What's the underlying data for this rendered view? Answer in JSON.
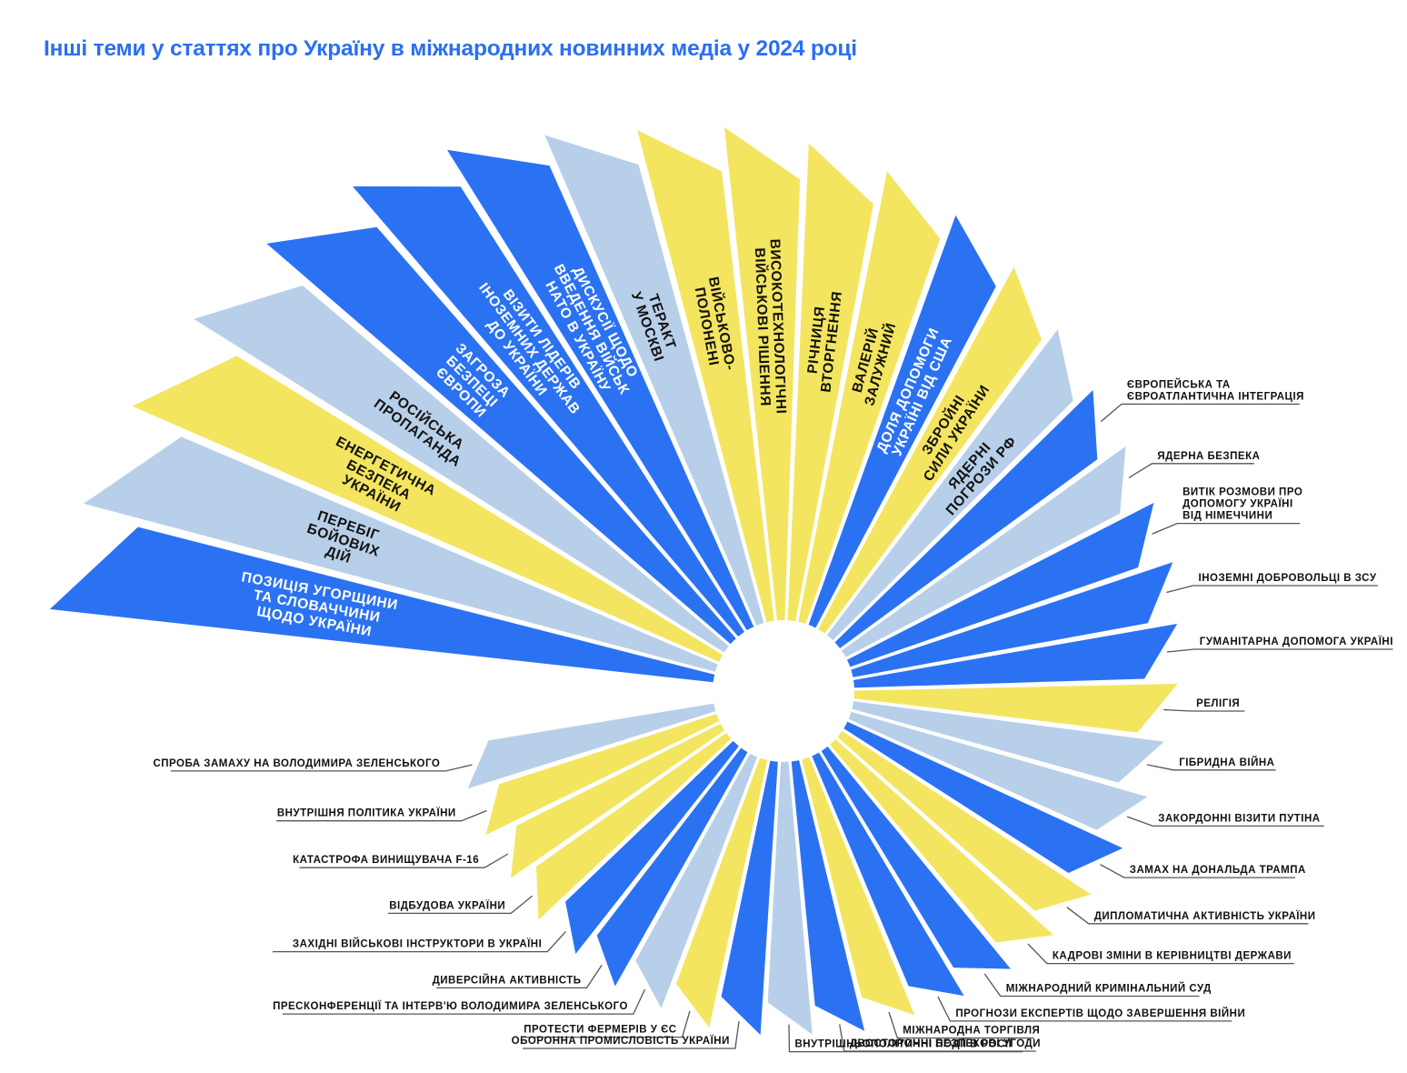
{
  "title": "Інші теми у статтях про Україну в міжнародних новинних медіа у 2024 році",
  "colors": {
    "blue": "#2b72f3",
    "light": "#b8cfe9",
    "yellow": "#f3e55f",
    "title": "#2b6ff2"
  },
  "chart_data": {
    "type": "radial-bar",
    "title": "Інші теми у статтях про Україну в міжнародних новинних медіа у 2024 році",
    "value_note": "relative prominence, estimated from petal length (largest = 100)",
    "direction": "clockwise from left",
    "categories": [
      {
        "label": "Позиція Угорщини та Словаччини щодо України",
        "lines": [
          "ПОЗИЦІЯ УГОРЩИНИ",
          "ТА СЛОВАЧЧИНИ",
          "ЩОДО УКРАЇНИ"
        ],
        "value": 100,
        "color": "blue",
        "label_mode": "inside"
      },
      {
        "label": "Перебіг бойових дій",
        "lines": [
          "ПЕРЕБІГ",
          "БОЙОВИХ",
          "ДІЙ"
        ],
        "value": 98,
        "color": "light",
        "label_mode": "inside"
      },
      {
        "label": "Енергетична безпека України",
        "lines": [
          "ЕНЕРГЕТИЧНА",
          "БЕЗПЕКА",
          "УКРАЇНИ"
        ],
        "value": 96,
        "color": "yellow",
        "label_mode": "inside"
      },
      {
        "label": "Російська пропаганда",
        "lines": [
          "РОСІЙСЬКА",
          "ПРОПАГАНДА"
        ],
        "value": 94,
        "color": "light",
        "label_mode": "inside"
      },
      {
        "label": "Загроза безпеці Європи",
        "lines": [
          "ЗАГРОЗА",
          "БЕЗПЕЦІ",
          "ЄВРОПИ"
        ],
        "value": 92,
        "color": "blue",
        "label_mode": "inside"
      },
      {
        "label": "Візити лідерів іноземних держав до України",
        "lines": [
          "ВІЗИТИ ЛІДЕРІВ",
          "ІНОЗЕМНИХ ДЕРЖАВ",
          "ДО УКРАЇНИ"
        ],
        "value": 89,
        "color": "blue",
        "label_mode": "inside"
      },
      {
        "label": "Дискусії щодо введення військ НАТО в Україну",
        "lines": [
          "ДИСКУСІЇ ЩОДО",
          "ВВЕДЕННЯ ВІЙСЬК",
          "НАТО В УКРАЇНУ"
        ],
        "value": 85,
        "color": "blue",
        "label_mode": "inside"
      },
      {
        "label": "Теракт у Москві",
        "lines": [
          "ТЕРАКТ",
          "У МОСКВІ"
        ],
        "value": 80,
        "color": "light",
        "label_mode": "inside"
      },
      {
        "label": "Військовополонені",
        "lines": [
          "ВІЙСЬКОВО-",
          "ПОЛОНЕНІ"
        ],
        "value": 76,
        "color": "yellow",
        "label_mode": "inside"
      },
      {
        "label": "Високотехнологічні військові рішення",
        "lines": [
          "ВИСОКОТЕХНОЛОГІЧНІ",
          "ВІЙСЬКОВІ РІШЕННЯ"
        ],
        "value": 74,
        "color": "yellow",
        "label_mode": "inside"
      },
      {
        "label": "Річниця вторгнення",
        "lines": [
          "РІЧНИЦЯ",
          "ВТОРГНЕННЯ"
        ],
        "value": 71,
        "color": "yellow",
        "label_mode": "inside"
      },
      {
        "label": "Валерій Залужний",
        "lines": [
          "ВАЛЕРІЙ",
          "ЗАЛУЖНИЙ"
        ],
        "value": 68,
        "color": "yellow",
        "label_mode": "inside"
      },
      {
        "label": "Доля допомоги Україні від США",
        "lines": [
          "ДОЛЯ ДОПОМОГИ",
          "УКРАЇНІ ВІД США"
        ],
        "value": 64,
        "color": "blue",
        "label_mode": "inside"
      },
      {
        "label": "Збройні сили України",
        "lines": [
          "ЗБРОЙНІ",
          "СИЛИ УКРАЇНИ"
        ],
        "value": 60,
        "color": "yellow",
        "label_mode": "inside"
      },
      {
        "label": "Ядерні погрози РФ",
        "lines": [
          "ЯДЕРНІ",
          "ПОГРОЗИ РФ"
        ],
        "value": 55,
        "color": "light",
        "label_mode": "inside"
      },
      {
        "label": "Європейська та євроатлантична інтеграція",
        "lines": [
          "ЄВРОПЕЙСЬКА ТА",
          "ЄВРОАТЛАНТИЧНА ІНТЕГРАЦІЯ"
        ],
        "value": 51,
        "color": "blue",
        "label_mode": "outside"
      },
      {
        "label": "Ядерна безпека",
        "lines": [
          "ЯДЕРНА БЕЗПЕКА"
        ],
        "value": 49,
        "color": "light",
        "label_mode": "outside"
      },
      {
        "label": "Витік розмови про допомогу Україні від Німеччини",
        "lines": [
          "ВИТІК РОЗМОВИ ПРО",
          "ДОПОМОГУ УКРАЇНІ",
          "ВІД НІМЕЧЧИНИ"
        ],
        "value": 48,
        "color": "blue",
        "label_mode": "outside"
      },
      {
        "label": "Іноземні добровольці в ЗСУ",
        "lines": [
          "ІНОЗЕМНІ ДОБРОВОЛЬЦІ В ЗСУ"
        ],
        "value": 47,
        "color": "blue",
        "label_mode": "outside"
      },
      {
        "label": "Гуманітарна допомога Україні",
        "lines": [
          "ГУМАНІТАРНА ДОПОМОГА УКРАЇНІ"
        ],
        "value": 45,
        "color": "blue",
        "label_mode": "outside"
      },
      {
        "label": "Релігія",
        "lines": [
          "РЕЛІГІЯ"
        ],
        "value": 44,
        "color": "yellow",
        "label_mode": "outside"
      },
      {
        "label": "Гібридна війна",
        "lines": [
          "ГІБРИДНА ВІЙНА"
        ],
        "value": 42,
        "color": "light",
        "label_mode": "outside"
      },
      {
        "label": "Закордонні візити Путіна",
        "lines": [
          "ЗАКОРДОННІ ВІЗИТИ ПУТІНА"
        ],
        "value": 41,
        "color": "light",
        "label_mode": "outside"
      },
      {
        "label": "Замах на Дональда Трампа",
        "lines": [
          "ЗАМАХ НА ДОНАЛЬДА ТРАМПА"
        ],
        "value": 40,
        "color": "blue",
        "label_mode": "outside"
      },
      {
        "label": "Дипломатична активність України",
        "lines": [
          "ДИПЛОМАТИЧНА АКТИВНІСТЬ УКРАЇНИ"
        ],
        "value": 39,
        "color": "yellow",
        "label_mode": "outside"
      },
      {
        "label": "Кадрові зміни в керівництві держави",
        "lines": [
          "КАДРОВІ ЗМІНИ В КЕРІВНИЦТВІ ДЕРЖАВИ"
        ],
        "value": 38,
        "color": "yellow",
        "label_mode": "outside"
      },
      {
        "label": "Міжнародний кримінальний суд",
        "lines": [
          "МІЖНАРОДНИЙ КРИМІНАЛЬНИЙ СУД"
        ],
        "value": 37,
        "color": "blue",
        "label_mode": "outside"
      },
      {
        "label": "Прогнози експертів щодо завершення війни",
        "lines": [
          "ПРОГНОЗИ ЕКСПЕРТІВ ЩОДО ЗАВЕРШЕННЯ ВІЙНИ"
        ],
        "value": 36,
        "color": "blue",
        "label_mode": "outside"
      },
      {
        "label": "Міжнародна торгівля",
        "lines": [
          "МІЖНАРОДНА ТОРГІВЛЯ"
        ],
        "value": 35,
        "color": "yellow",
        "label_mode": "outside"
      },
      {
        "label": "Двосторонні безпекові угоди",
        "lines": [
          "ДВОСТОРОННІ БЕЗПЕКОВІ УГОДИ"
        ],
        "value": 35,
        "color": "blue",
        "label_mode": "outside"
      },
      {
        "label": "Внутрішньополітичні події в Росії",
        "lines": [
          "ВНУТРІШНЬОПОЛІТИЧНІ ПОДІЇ В РОСІЇ"
        ],
        "value": 34,
        "color": "light",
        "label_mode": "outside"
      },
      {
        "label": "Оборонна промисловість України",
        "lines": [
          "ОБОРОННА ПРОМИСЛОВІСТЬ УКРАЇНИ"
        ],
        "value": 34,
        "color": "blue",
        "label_mode": "outside"
      },
      {
        "label": "Протести фермерів у ЄС",
        "lines": [
          "ПРОТЕСТИ ФЕРМЕРІВ У ЄС"
        ],
        "value": 34,
        "color": "yellow",
        "label_mode": "outside"
      },
      {
        "label": "Пресконференції та інтерв'ю Володимира Зеленського",
        "lines": [
          "ПРЕСКОНФЕРЕНЦІЇ ТА ІНТЕРВ'Ю ВОЛОДИМИРА ЗЕЛЕНСЬКОГО"
        ],
        "value": 33,
        "color": "light",
        "label_mode": "outside"
      },
      {
        "label": "Диверсійна активність",
        "lines": [
          "ДИВЕРСІЙНА АКТИВНІСТЬ"
        ],
        "value": 33,
        "color": "blue",
        "label_mode": "outside"
      },
      {
        "label": "Західні військові інструктори в Україні",
        "lines": [
          "ЗАХІДНІ ВІЙСЬКОВІ ІНСТРУКТОРИ В УКРАЇНІ"
        ],
        "value": 32,
        "color": "blue",
        "label_mode": "outside"
      },
      {
        "label": "Відбудова України",
        "lines": [
          "ВІДБУДОВА УКРАЇНИ"
        ],
        "value": 32,
        "color": "yellow",
        "label_mode": "outside"
      },
      {
        "label": "Катастрофа винищувача F-16",
        "lines": [
          "КАТАСТРОФА ВИНИЩУВАЧА F-16"
        ],
        "value": 31,
        "color": "yellow",
        "label_mode": "outside"
      },
      {
        "label": "Внутрішня політика України",
        "lines": [
          "ВНУТРІШНЯ ПОЛІТИКА УКРАЇНИ"
        ],
        "value": 31,
        "color": "yellow",
        "label_mode": "outside"
      },
      {
        "label": "Спроба замаху на Володимира Зеленського",
        "lines": [
          "СПРОБА ЗАМАХУ НА ВОЛОДИМИРА ЗЕЛЕНСЬКОГО"
        ],
        "value": 31,
        "color": "light",
        "label_mode": "outside"
      }
    ]
  }
}
